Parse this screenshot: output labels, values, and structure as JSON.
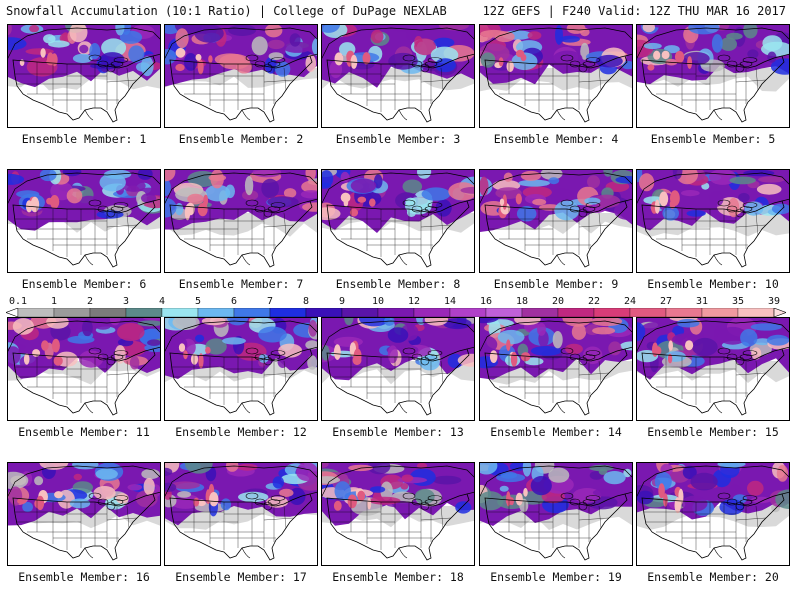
{
  "header": {
    "title_left": "Snowfall Accumulation (10:1 Ratio) | College of DuPage NEXLAB",
    "title_right": "12Z GEFS | F240 Valid: 12Z THU MAR 16 2017"
  },
  "legend": {
    "ticks": [
      "0.1",
      "1",
      "2",
      "3",
      "4",
      "5",
      "6",
      "7",
      "8",
      "9",
      "10",
      "12",
      "14",
      "16",
      "18",
      "20",
      "22",
      "24",
      "27",
      "31",
      "35",
      "39"
    ],
    "colors": [
      "#bdbdbd",
      "#9b9b9b",
      "#7b7b7b",
      "#5c8a8a",
      "#9ae6f0",
      "#6cb8f0",
      "#3f78e8",
      "#1e2ee0",
      "#3a10b8",
      "#5a14a8",
      "#7a18b0",
      "#9a28b8",
      "#b040c8",
      "#c060d8",
      "#a030a0",
      "#c02880",
      "#d83c78",
      "#e05a80",
      "#e87890",
      "#f09aa0",
      "#f8c0c0"
    ]
  },
  "panels": [
    {
      "label": "Ensemble Member: 1"
    },
    {
      "label": "Ensemble Member: 2"
    },
    {
      "label": "Ensemble Member: 3"
    },
    {
      "label": "Ensemble Member: 4"
    },
    {
      "label": "Ensemble Member: 5"
    },
    {
      "label": "Ensemble Member: 6"
    },
    {
      "label": "Ensemble Member: 7"
    },
    {
      "label": "Ensemble Member: 8"
    },
    {
      "label": "Ensemble Member: 9"
    },
    {
      "label": "Ensemble Member: 10"
    },
    {
      "label": "Ensemble Member: 11"
    },
    {
      "label": "Ensemble Member: 12"
    },
    {
      "label": "Ensemble Member: 13"
    },
    {
      "label": "Ensemble Member: 14"
    },
    {
      "label": "Ensemble Member: 15"
    },
    {
      "label": "Ensemble Member: 16"
    },
    {
      "label": "Ensemble Member: 17"
    },
    {
      "label": "Ensemble Member: 18"
    },
    {
      "label": "Ensemble Member: 19"
    },
    {
      "label": "Ensemble Member: 20"
    }
  ]
}
